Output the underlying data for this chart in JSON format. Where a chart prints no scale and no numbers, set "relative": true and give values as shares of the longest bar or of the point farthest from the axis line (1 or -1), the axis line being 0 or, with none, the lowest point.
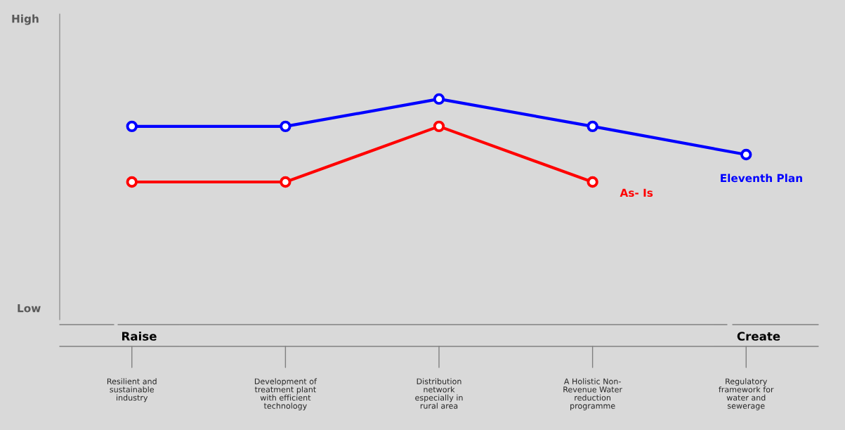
{
  "chart_data": {
    "type": "line",
    "relative": true,
    "categories": [
      "Resilient and\nsustainable\nindustry",
      "Development of\ntreatment plant\nwith efficient\ntechnology",
      "Distribution\nnetwork\nespecially in\nrural area",
      "A Holistic Non-\nRevenue Water\nreduction\nprogramme",
      "Regulatory\nframework for\nwater and\nsewerage"
    ],
    "series": [
      {
        "name": "Eleventh Plan",
        "color": "#0000ff",
        "values": [
          0.876,
          0.876,
          1,
          0.876,
          0.748
        ]
      },
      {
        "name": "As- Is",
        "color": "#ff0000",
        "values": [
          0.624,
          0.624,
          0.876,
          0.624,
          null
        ]
      }
    ],
    "annotations": [
      "High",
      "Low",
      "Raise",
      "Create"
    ],
    "marker": "circle",
    "line_style": "solid",
    "grid": false,
    "legend": false
  }
}
